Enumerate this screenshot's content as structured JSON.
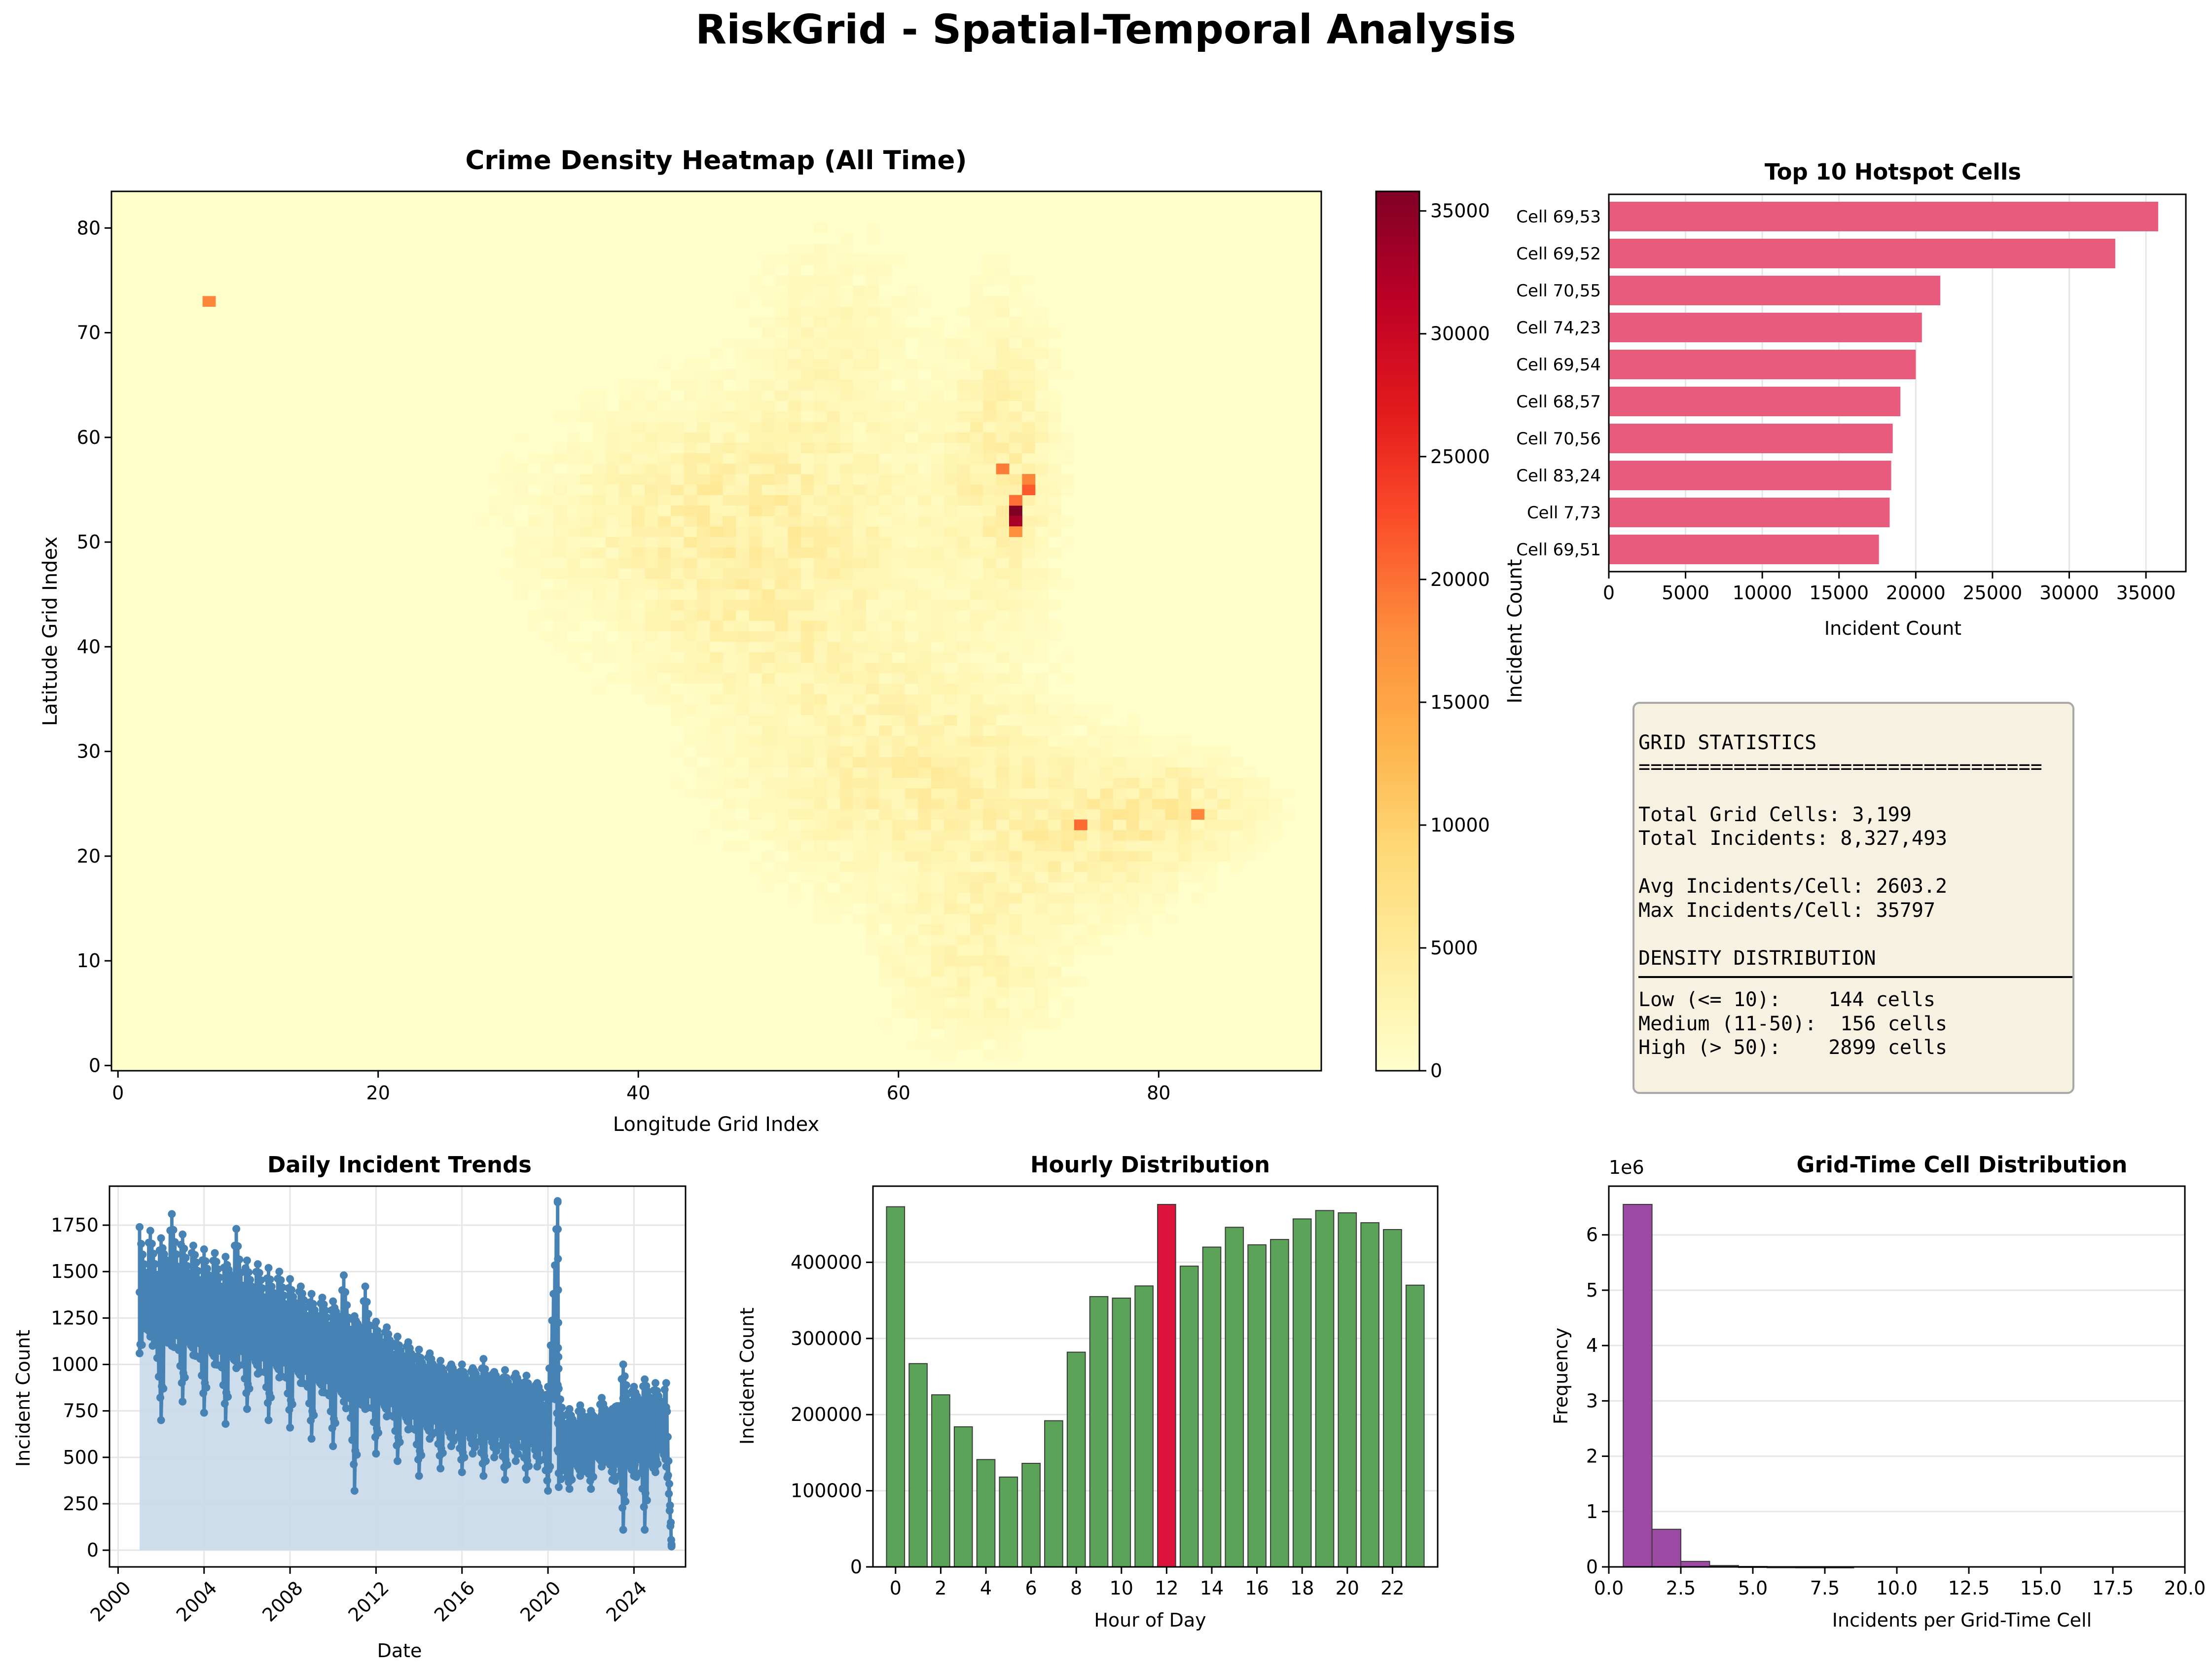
{
  "figure": {
    "title": "RiskGrid - Spatial-Temporal Analysis"
  },
  "colors": {
    "heat_low": "#ffffcc",
    "heat_mid": "#fd8d3c",
    "heat_high": "#800026",
    "hotspot_bar": "#e75c7d",
    "trend_line": "#4682b4",
    "trend_fill": "#c8d9ea",
    "hour_bar": "#5ba358",
    "hour_peak": "#dc143c",
    "hist_bar": "#9c4aa4",
    "stats_bg": "#f7f1e2"
  },
  "chart_data": [
    {
      "type": "heatmap",
      "title": "Crime Density Heatmap (All Time)",
      "xlabel": "Longitude Grid Index",
      "ylabel": "Latitude Grid Index",
      "xlim": [
        -0.5,
        92.5
      ],
      "ylim": [
        -0.5,
        83.5
      ],
      "xticks": [
        0,
        20,
        40,
        60,
        80
      ],
      "yticks": [
        0,
        10,
        20,
        30,
        40,
        50,
        60,
        70,
        80
      ],
      "colorbar": {
        "label": "Incident Count",
        "range": [
          0,
          35797
        ],
        "ticks": [
          0,
          5000,
          10000,
          15000,
          20000,
          25000,
          30000,
          35000
        ]
      },
      "hotspots": [
        {
          "x": 69,
          "y": 53,
          "value": 35797
        },
        {
          "x": 69,
          "y": 52,
          "value": 33000
        },
        {
          "x": 70,
          "y": 55,
          "value": 21600
        },
        {
          "x": 74,
          "y": 23,
          "value": 20400
        },
        {
          "x": 69,
          "y": 54,
          "value": 20000
        },
        {
          "x": 68,
          "y": 57,
          "value": 19000
        },
        {
          "x": 70,
          "y": 56,
          "value": 18500
        },
        {
          "x": 83,
          "y": 24,
          "value": 18400
        },
        {
          "x": 7,
          "y": 73,
          "value": 18300
        },
        {
          "x": 69,
          "y": 51,
          "value": 17600
        }
      ]
    },
    {
      "type": "bar",
      "orientation": "horizontal",
      "title": "Top 10 Hotspot Cells",
      "xlabel": "Incident Count",
      "categories": [
        "Cell 69,53",
        "Cell 69,52",
        "Cell 70,55",
        "Cell 74,23",
        "Cell 69,54",
        "Cell 68,57",
        "Cell 70,56",
        "Cell 83,24",
        "Cell 7,73",
        "Cell 69,51"
      ],
      "values": [
        35797,
        33000,
        21600,
        20400,
        20000,
        19000,
        18500,
        18400,
        18300,
        17600
      ],
      "xlim": [
        0,
        37600
      ],
      "xticks": [
        0,
        5000,
        10000,
        15000,
        20000,
        25000,
        30000,
        35000
      ],
      "grid": "x"
    },
    {
      "type": "line",
      "title": "Daily Incident Trends",
      "xlabel": "Date",
      "ylabel": "Incident Count",
      "xticks": [
        "2000",
        "2004",
        "2008",
        "2012",
        "2016",
        "2020",
        "2024"
      ],
      "xlim": [
        1999.6,
        2026.4
      ],
      "ylim": [
        -90,
        1960
      ],
      "yticks": [
        0,
        250,
        500,
        750,
        1000,
        1250,
        1500,
        1750
      ],
      "series": [
        {
          "x": [
            2001.0,
            2001.5,
            2002.0,
            2002.5,
            2003.0,
            2003.5,
            2004.0,
            2004.5,
            2005.0,
            2005.5,
            2006.0,
            2006.5,
            2007.0,
            2007.5,
            2008.0,
            2008.5,
            2009.0,
            2009.5,
            2010.0,
            2010.5,
            2011.0,
            2011.5,
            2012.0,
            2012.5,
            2013.0,
            2013.5,
            2014.0,
            2014.5,
            2015.0,
            2015.5,
            2016.0,
            2016.5,
            2017.0,
            2017.5,
            2018.0,
            2018.5,
            2019.0,
            2019.5,
            2020.0,
            2020.45,
            2020.5,
            2021.0,
            2021.5,
            2022.0,
            2022.5,
            2023.0,
            2023.5,
            2024.0,
            2024.5,
            2025.0,
            2025.5,
            2025.75
          ],
          "mean": [
            1200,
            1350,
            1250,
            1400,
            1280,
            1380,
            1240,
            1360,
            1200,
            1320,
            1180,
            1300,
            1150,
            1280,
            1120,
            1250,
            1060,
            1180,
            1020,
            1120,
            980,
            1080,
            950,
            1040,
            880,
            980,
            820,
            930,
            780,
            900,
            760,
            880,
            740,
            860,
            720,
            840,
            710,
            820,
            580,
            1870,
            620,
            530,
            620,
            560,
            680,
            600,
            720,
            650,
            740,
            640,
            700,
            30
          ],
          "low": [
            1060,
            1150,
            700,
            1100,
            800,
            1050,
            740,
            1000,
            680,
            980,
            760,
            950,
            700,
            930,
            660,
            900,
            600,
            850,
            560,
            800,
            320,
            760,
            520,
            720,
            480,
            650,
            400,
            600,
            440,
            560,
            420,
            520,
            400,
            500,
            380,
            480,
            380,
            450,
            320,
            540,
            340,
            330,
            400,
            330,
            450,
            380,
            110,
            400,
            110,
            420,
            450,
            20
          ],
          "high": [
            1740,
            1720,
            1680,
            1810,
            1700,
            1640,
            1620,
            1600,
            1580,
            1730,
            1560,
            1540,
            1520,
            1500,
            1460,
            1420,
            1380,
            1360,
            1340,
            1480,
            1260,
            1420,
            1230,
            1200,
            1150,
            1120,
            1080,
            1060,
            1020,
            1000,
            1000,
            980,
            1030,
            960,
            970,
            950,
            940,
            900,
            880,
            1880,
            870,
            760,
            780,
            750,
            820,
            760,
            1000,
            880,
            920,
            900,
            900,
            30
          ]
        }
      ]
    },
    {
      "type": "bar",
      "title": "Hourly Distribution",
      "xlabel": "Hour of Day",
      "ylabel": "Incident Count",
      "categories": [
        "0",
        "1",
        "2",
        "3",
        "4",
        "5",
        "6",
        "7",
        "8",
        "9",
        "10",
        "11",
        "12",
        "13",
        "14",
        "15",
        "16",
        "17",
        "18",
        "19",
        "20",
        "21",
        "22",
        "23"
      ],
      "values": [
        473000,
        267000,
        226000,
        184000,
        141000,
        118000,
        136000,
        192000,
        282000,
        355000,
        353000,
        369000,
        476000,
        395000,
        420000,
        446000,
        423000,
        430000,
        457000,
        468000,
        465000,
        452000,
        443000,
        370000
      ],
      "highlight_index": 12,
      "xticks": [
        "0",
        "2",
        "4",
        "6",
        "8",
        "10",
        "12",
        "14",
        "16",
        "18",
        "20",
        "22"
      ],
      "ylim": [
        0,
        500000
      ],
      "yticks": [
        0,
        100000,
        200000,
        300000,
        400000
      ],
      "grid": "y"
    },
    {
      "type": "bar",
      "title": "Grid-Time Cell Distribution",
      "xlabel": "Incidents per Grid-Time Cell",
      "ylabel": "Frequency",
      "scale_label": "1e6",
      "bins": [
        [
          0.5,
          1.5
        ],
        [
          1.5,
          2.5
        ],
        [
          2.5,
          3.5
        ],
        [
          3.5,
          4.5
        ],
        [
          4.5,
          5.5
        ],
        [
          5.5,
          6.5
        ],
        [
          6.5,
          7.5
        ],
        [
          7.5,
          8.5
        ]
      ],
      "values": [
        6.55,
        0.68,
        0.1,
        0.025,
        0.008,
        0.003,
        0.001,
        0.0005
      ],
      "xlim": [
        0,
        20
      ],
      "ylim": [
        0,
        6.88
      ],
      "xticks": [
        "0.0",
        "2.5",
        "5.0",
        "7.5",
        "10.0",
        "12.5",
        "15.0",
        "17.5",
        "20.0"
      ],
      "yticks": [
        "0",
        "1",
        "2",
        "3",
        "4",
        "5",
        "6"
      ],
      "grid": "y"
    }
  ],
  "stats": {
    "header": "GRID STATISTICS",
    "rule": "==================================",
    "total_cells": "Total Grid Cells: 3,199",
    "total_incidents": "Total Incidents: 8,327,493",
    "avg": "Avg Incidents/Cell: 2603.2",
    "max": "Max Incidents/Cell: 35797",
    "dist_header": "DENSITY DISTRIBUTION",
    "low": "Low (<= 10):    144 cells",
    "medium": "Medium (11-50):  156 cells",
    "high": "High (> 50):    2899 cells"
  }
}
